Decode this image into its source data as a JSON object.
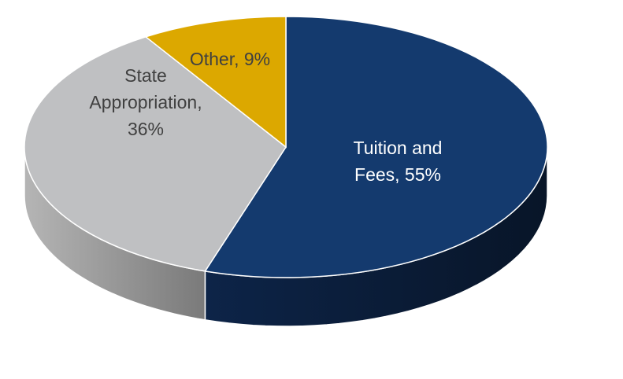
{
  "chart_data": {
    "type": "pie",
    "style": "3d",
    "title": "",
    "slices": [
      {
        "label": "Tuition and Fees",
        "value": 55,
        "color": "#143a6e",
        "side_color": "#0b1a33",
        "label_color": "#ffffff",
        "label_lines": [
          "Tuition and",
          "Fees, 55%"
        ]
      },
      {
        "label": "State Appropriation",
        "value": 36,
        "color": "#bfc0c2",
        "side_color": "#8a8a8a",
        "label_color": "#404040",
        "label_lines": [
          "State",
          "Appropriation,",
          "36%"
        ]
      },
      {
        "label": "Other",
        "value": 9,
        "color": "#dca800",
        "side_color": "#a07a00",
        "label_color": "#404040",
        "label_lines": [
          "Other, 9%"
        ]
      }
    ],
    "start_angle": "top",
    "direction": "clockwise",
    "legend": "none"
  }
}
